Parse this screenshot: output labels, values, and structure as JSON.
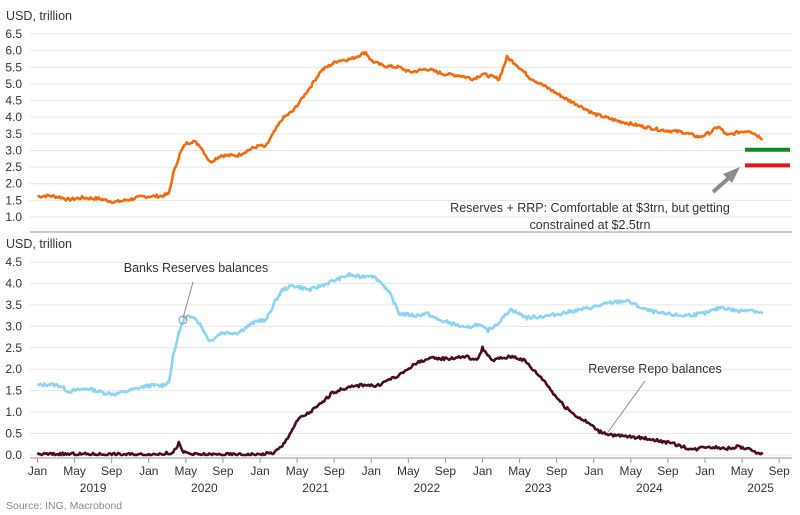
{
  "colors": {
    "top_line": "#F26B0F",
    "reserves": "#8DD3F2",
    "rrp": "#4A0B25",
    "green_marker": "#0F8A1E",
    "red_marker": "#E8141C",
    "arrow": "#8C8C8C"
  },
  "chart_data": [
    {
      "type": "line",
      "ylabel": "USD, trillion",
      "ylim": [
        0.75,
        6.75
      ],
      "yticks": [
        1.0,
        1.5,
        2.0,
        2.5,
        3.0,
        3.5,
        4.0,
        4.5,
        5.0,
        5.5,
        6.0,
        6.5
      ],
      "ytick_labels": [
        "1.0",
        "1.5",
        "2.0",
        "2.5",
        "3.0",
        "3.5",
        "4.0",
        "4.5",
        "5.0",
        "5.5",
        "6.0",
        "6.5"
      ],
      "grid": true,
      "series": [
        {
          "points": [
            [
              2019.0,
              1.62
            ],
            [
              2019.1,
              1.64
            ],
            [
              2019.2,
              1.6
            ],
            [
              2019.28,
              1.52
            ],
            [
              2019.4,
              1.58
            ],
            [
              2019.55,
              1.55
            ],
            [
              2019.7,
              1.45
            ],
            [
              2019.82,
              1.52
            ],
            [
              2019.92,
              1.6
            ],
            [
              2020.0,
              1.62
            ],
            [
              2020.12,
              1.63
            ],
            [
              2020.18,
              1.7
            ],
            [
              2020.22,
              2.3
            ],
            [
              2020.28,
              2.9
            ],
            [
              2020.33,
              3.2
            ],
            [
              2020.4,
              3.28
            ],
            [
              2020.46,
              3.15
            ],
            [
              2020.55,
              2.65
            ],
            [
              2020.65,
              2.85
            ],
            [
              2020.8,
              2.85
            ],
            [
              2020.92,
              3.05
            ],
            [
              2021.0,
              3.15
            ],
            [
              2021.05,
              3.1
            ],
            [
              2021.1,
              3.4
            ],
            [
              2021.2,
              3.95
            ],
            [
              2021.3,
              4.2
            ],
            [
              2021.45,
              4.9
            ],
            [
              2021.55,
              5.4
            ],
            [
              2021.7,
              5.7
            ],
            [
              2021.82,
              5.75
            ],
            [
              2021.95,
              5.95
            ],
            [
              2022.0,
              5.7
            ],
            [
              2022.1,
              5.55
            ],
            [
              2022.25,
              5.5
            ],
            [
              2022.35,
              5.35
            ],
            [
              2022.5,
              5.45
            ],
            [
              2022.65,
              5.3
            ],
            [
              2022.8,
              5.25
            ],
            [
              2022.92,
              5.15
            ],
            [
              2023.0,
              5.3
            ],
            [
              2023.15,
              5.15
            ],
            [
              2023.22,
              5.8
            ],
            [
              2023.3,
              5.6
            ],
            [
              2023.42,
              5.2
            ],
            [
              2023.6,
              4.85
            ],
            [
              2023.75,
              4.55
            ],
            [
              2023.9,
              4.3
            ],
            [
              2024.0,
              4.1
            ],
            [
              2024.2,
              3.9
            ],
            [
              2024.4,
              3.75
            ],
            [
              2024.6,
              3.62
            ],
            [
              2024.8,
              3.55
            ],
            [
              2024.95,
              3.4
            ],
            [
              2025.05,
              3.55
            ],
            [
              2025.12,
              3.72
            ],
            [
              2025.2,
              3.45
            ],
            [
              2025.3,
              3.55
            ],
            [
              2025.4,
              3.6
            ],
            [
              2025.52,
              3.35
            ]
          ]
        }
      ],
      "annotations": [
        {
          "text": "Reserves + RRP: Comfortable at $3trn, but getting"
        },
        {
          "text": "constrained at $2.5trn"
        }
      ],
      "markers": [
        {
          "y": 3.02,
          "color": "green_marker"
        },
        {
          "y": 2.55,
          "color": "red_marker"
        }
      ]
    },
    {
      "type": "line",
      "ylabel": "USD, trillion",
      "ylim": [
        0,
        4.6
      ],
      "yticks": [
        0.0,
        0.5,
        1.0,
        1.5,
        2.0,
        2.5,
        3.0,
        3.5,
        4.0,
        4.5
      ],
      "ytick_labels": [
        "0.0",
        "0.5",
        "1.0",
        "1.5",
        "2.0",
        "2.5",
        "3.0",
        "3.5",
        "4.0",
        "4.5"
      ],
      "grid": true,
      "series": [
        {
          "key": "reserves",
          "points": [
            [
              2019.0,
              1.62
            ],
            [
              2019.1,
              1.65
            ],
            [
              2019.2,
              1.62
            ],
            [
              2019.28,
              1.48
            ],
            [
              2019.45,
              1.55
            ],
            [
              2019.6,
              1.45
            ],
            [
              2019.7,
              1.42
            ],
            [
              2019.85,
              1.52
            ],
            [
              2020.0,
              1.62
            ],
            [
              2020.12,
              1.62
            ],
            [
              2020.18,
              1.7
            ],
            [
              2020.22,
              2.3
            ],
            [
              2020.28,
              2.95
            ],
            [
              2020.33,
              3.2
            ],
            [
              2020.4,
              3.25
            ],
            [
              2020.46,
              3.05
            ],
            [
              2020.55,
              2.65
            ],
            [
              2020.65,
              2.85
            ],
            [
              2020.8,
              2.85
            ],
            [
              2020.92,
              3.05
            ],
            [
              2021.0,
              3.15
            ],
            [
              2021.05,
              3.12
            ],
            [
              2021.12,
              3.5
            ],
            [
              2021.2,
              3.85
            ],
            [
              2021.3,
              3.95
            ],
            [
              2021.45,
              3.85
            ],
            [
              2021.55,
              3.95
            ],
            [
              2021.65,
              4.05
            ],
            [
              2021.8,
              4.2
            ],
            [
              2021.9,
              4.15
            ],
            [
              2022.0,
              4.2
            ],
            [
              2022.1,
              4.0
            ],
            [
              2022.18,
              3.7
            ],
            [
              2022.25,
              3.3
            ],
            [
              2022.4,
              3.25
            ],
            [
              2022.5,
              3.3
            ],
            [
              2022.6,
              3.15
            ],
            [
              2022.75,
              3.05
            ],
            [
              2022.85,
              2.95
            ],
            [
              2022.95,
              3.05
            ],
            [
              2023.05,
              2.9
            ],
            [
              2023.15,
              3.1
            ],
            [
              2023.25,
              3.4
            ],
            [
              2023.4,
              3.2
            ],
            [
              2023.6,
              3.25
            ],
            [
              2023.8,
              3.35
            ],
            [
              2024.0,
              3.45
            ],
            [
              2024.15,
              3.55
            ],
            [
              2024.3,
              3.6
            ],
            [
              2024.45,
              3.4
            ],
            [
              2024.6,
              3.3
            ],
            [
              2024.8,
              3.25
            ],
            [
              2025.0,
              3.3
            ],
            [
              2025.15,
              3.45
            ],
            [
              2025.3,
              3.35
            ],
            [
              2025.4,
              3.4
            ],
            [
              2025.52,
              3.3
            ]
          ]
        },
        {
          "key": "rrp",
          "points": [
            [
              2019.0,
              0.02
            ],
            [
              2019.5,
              0.02
            ],
            [
              2020.0,
              0.01
            ],
            [
              2020.22,
              0.05
            ],
            [
              2020.27,
              0.28
            ],
            [
              2020.3,
              0.08
            ],
            [
              2020.4,
              0.01
            ],
            [
              2021.0,
              0.01
            ],
            [
              2021.12,
              0.05
            ],
            [
              2021.2,
              0.2
            ],
            [
              2021.28,
              0.55
            ],
            [
              2021.35,
              0.85
            ],
            [
              2021.45,
              1.0
            ],
            [
              2021.55,
              1.2
            ],
            [
              2021.65,
              1.45
            ],
            [
              2021.75,
              1.55
            ],
            [
              2021.85,
              1.6
            ],
            [
              2021.95,
              1.65
            ],
            [
              2022.05,
              1.6
            ],
            [
              2022.15,
              1.75
            ],
            [
              2022.25,
              1.85
            ],
            [
              2022.35,
              2.05
            ],
            [
              2022.45,
              2.2
            ],
            [
              2022.55,
              2.25
            ],
            [
              2022.7,
              2.25
            ],
            [
              2022.85,
              2.3
            ],
            [
              2022.95,
              2.2
            ],
            [
              2023.0,
              2.5
            ],
            [
              2023.08,
              2.2
            ],
            [
              2023.15,
              2.25
            ],
            [
              2023.28,
              2.3
            ],
            [
              2023.38,
              2.2
            ],
            [
              2023.45,
              2.0
            ],
            [
              2023.55,
              1.75
            ],
            [
              2023.65,
              1.4
            ],
            [
              2023.75,
              1.1
            ],
            [
              2023.85,
              0.9
            ],
            [
              2023.95,
              0.75
            ],
            [
              2024.05,
              0.55
            ],
            [
              2024.2,
              0.45
            ],
            [
              2024.35,
              0.42
            ],
            [
              2024.5,
              0.38
            ],
            [
              2024.65,
              0.3
            ],
            [
              2024.8,
              0.2
            ],
            [
              2024.9,
              0.12
            ],
            [
              2025.0,
              0.2
            ],
            [
              2025.1,
              0.18
            ],
            [
              2025.2,
              0.15
            ],
            [
              2025.3,
              0.2
            ],
            [
              2025.4,
              0.12
            ],
            [
              2025.52,
              0.02
            ]
          ]
        }
      ],
      "annotations": [
        {
          "text": "Banks Reserves balances"
        },
        {
          "text": "Reverse Repo balances"
        }
      ]
    }
  ],
  "x_axis": {
    "month_labels": [
      "Jan",
      "May",
      "Sep",
      "Jan",
      "May",
      "Sep",
      "Jan",
      "May",
      "Sep",
      "Jan",
      "May",
      "Sep",
      "Jan",
      "May",
      "Sep",
      "Jan",
      "May",
      "Sep",
      "Jan",
      "May",
      "Sep"
    ],
    "year_labels": [
      "2019",
      "2020",
      "2021",
      "2022",
      "2023",
      "2024",
      "2025"
    ]
  },
  "source": "Source: ING, Macrobond"
}
